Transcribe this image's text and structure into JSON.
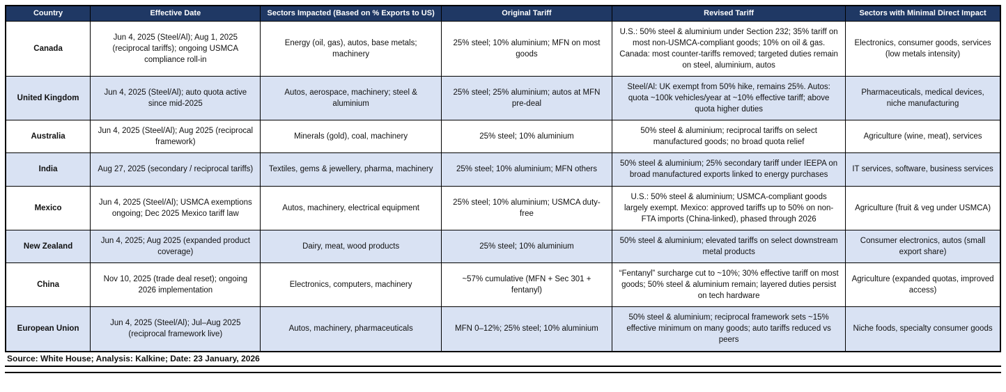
{
  "colors": {
    "header_bg": "#1F3864",
    "header_text": "#FFFFFF",
    "alt_row_bg": "#D9E2F3",
    "border_color": "#000000"
  },
  "table": {
    "columns": [
      {
        "key": "country",
        "label": "Country"
      },
      {
        "key": "effective_date",
        "label": "Effective Date"
      },
      {
        "key": "sectors_impacted",
        "label": "Sectors Impacted (Based on % Exports to US)"
      },
      {
        "key": "original_tariff",
        "label": "Original Tariff"
      },
      {
        "key": "revised_tariff",
        "label": "Revised Tariff"
      },
      {
        "key": "minimal_impact",
        "label": "Sectors with Minimal Direct Impact"
      }
    ],
    "rows": [
      {
        "country": "Canada",
        "effective_date": "Jun 4, 2025 (Steel/Al); Aug 1, 2025 (reciprocal tariffs); ongoing USMCA compliance roll-in",
        "sectors_impacted": "Energy (oil, gas), autos, base metals; machinery",
        "original_tariff": "25% steel; 10% aluminium; MFN on most goods",
        "revised_tariff": "U.S.: 50% steel & aluminium under Section 232; 35% tariff on most non-USMCA-compliant goods; 10% on oil & gas. Canada: most counter-tariffs removed; targeted duties remain on steel, aluminium, autos",
        "minimal_impact": "Electronics, consumer goods, services (low metals intensity)"
      },
      {
        "country": "United Kingdom",
        "effective_date": "Jun 4, 2025 (Steel/Al); auto quota active since mid-2025",
        "sectors_impacted": "Autos, aerospace, machinery; steel & aluminium",
        "original_tariff": "25% steel; 25% aluminium; autos at MFN pre-deal",
        "revised_tariff": "Steel/Al: UK exempt from 50% hike, remains 25%. Autos: quota ~100k vehicles/year at ~10% effective tariff; above quota higher duties",
        "minimal_impact": "Pharmaceuticals, medical devices, niche manufacturing"
      },
      {
        "country": "Australia",
        "effective_date": "Jun 4, 2025 (Steel/Al); Aug 2025 (reciprocal framework)",
        "sectors_impacted": "Minerals (gold), coal, machinery",
        "original_tariff": "25% steel; 10% aluminium",
        "revised_tariff": "50% steel & aluminium; reciprocal tariffs on select manufactured goods; no broad quota relief",
        "minimal_impact": "Agriculture (wine, meat), services"
      },
      {
        "country": "India",
        "effective_date": "Aug 27, 2025 (secondary / reciprocal tariffs)",
        "sectors_impacted": "Textiles, gems & jewellery, pharma, machinery",
        "original_tariff": "25% steel; 10% aluminium; MFN others",
        "revised_tariff": "50% steel & aluminium; 25% secondary tariff under IEEPA on broad manufactured exports linked to energy purchases",
        "minimal_impact": "IT services, software, business services"
      },
      {
        "country": "Mexico",
        "effective_date": "Jun 4, 2025 (Steel/Al); USMCA exemptions ongoing; Dec 2025 Mexico tariff law",
        "sectors_impacted": "Autos, machinery, electrical equipment",
        "original_tariff": "25% steel; 10% aluminium; USMCA duty-free",
        "revised_tariff": "U.S.: 50% steel & aluminium; USMCA-compliant goods largely exempt. Mexico: approved tariffs up to 50% on non-FTA imports (China-linked), phased through 2026",
        "minimal_impact": "Agriculture (fruit & veg under USMCA)"
      },
      {
        "country": "New Zealand",
        "effective_date": "Jun 4, 2025; Aug 2025 (expanded product coverage)",
        "sectors_impacted": "Dairy, meat, wood products",
        "original_tariff": "25% steel; 10% aluminium",
        "revised_tariff": "50% steel & aluminium; elevated tariffs on select downstream metal products",
        "minimal_impact": "Consumer electronics, autos (small export share)"
      },
      {
        "country": "China",
        "effective_date": "Nov 10, 2025 (trade deal reset); ongoing 2026 implementation",
        "sectors_impacted": "Electronics, computers, machinery",
        "original_tariff": "~57% cumulative (MFN + Sec 301 + fentanyl)",
        "revised_tariff": "“Fentanyl” surcharge cut to ~10%; 30% effective tariff on most goods; 50% steel & aluminium remain; layered duties persist on tech hardware",
        "minimal_impact": "Agriculture (expanded quotas, improved access)"
      },
      {
        "country": "European Union",
        "effective_date": "Jun 4, 2025 (Steel/Al); Jul–Aug 2025 (reciprocal framework live)",
        "sectors_impacted": "Autos, machinery, pharmaceuticals",
        "original_tariff": "MFN 0–12%; 25% steel; 10% aluminium",
        "revised_tariff": "50% steel & aluminium; reciprocal framework sets ~15% effective minimum on many goods; auto tariffs reduced vs peers",
        "minimal_impact": "Niche foods, specialty consumer goods"
      }
    ]
  },
  "footer": {
    "source_text": "Source: White House; Analysis: Kalkine; Date: 23 January, 2026"
  }
}
